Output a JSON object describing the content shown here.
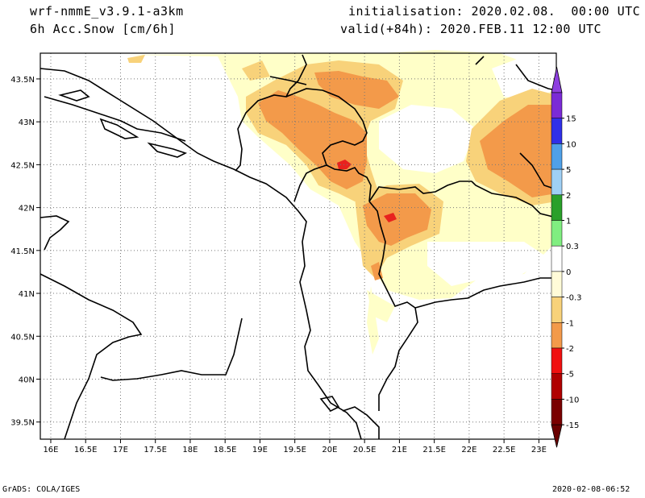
{
  "header": {
    "model": "wrf-nmmE_v3.9.1-a3km",
    "field": "6h Acc.Snow [cm/6h]",
    "init": "initialisation: 2020.02.08.  00:00 UTC",
    "valid": "valid(+84h): 2020.FEB.11 12:00 UTC"
  },
  "footer": {
    "left": "GrADS: COLA/IGES",
    "right": "2020-02-08-06:52"
  },
  "map": {
    "lat_labels": [
      "43.5N",
      "43N",
      "42.5N",
      "42N",
      "41.5N",
      "41N",
      "40.5N",
      "40N",
      "39.5N"
    ],
    "lat_values": [
      43.5,
      43,
      42.5,
      42,
      41.5,
      41,
      40.5,
      40,
      39.5
    ],
    "lon_labels": [
      "16E",
      "16.5E",
      "17E",
      "17.5E",
      "18E",
      "18.5E",
      "19E",
      "19.5E",
      "20E",
      "20.5E",
      "21E",
      "21.5E",
      "22E",
      "22.5E",
      "23E"
    ],
    "lon_values": [
      16,
      16.5,
      17,
      17.5,
      18,
      18.5,
      19,
      19.5,
      20,
      20.5,
      21,
      21.5,
      22,
      22.5,
      23
    ],
    "lon_range": [
      15.85,
      23.25
    ],
    "lat_range": [
      39.3,
      43.8
    ],
    "colors": {
      "very_light": "#ffffc8",
      "light": "#f8d27a",
      "orange": "#f39a4a",
      "red": "#e8221e"
    }
  },
  "colorbar": {
    "labels": [
      "15",
      "10",
      "5",
      "2",
      "1",
      "0.3",
      "0",
      "-0.3",
      "-1",
      "-2",
      "-5",
      "-10",
      "-15"
    ],
    "colors": [
      "#7b2bd6",
      "#3030e8",
      "#4fa0e8",
      "#9fd0f5",
      "#2aa02a",
      "#80ee80",
      "#ffffff",
      "#fffbd8",
      "#f8d27a",
      "#f39a4a",
      "#f01010",
      "#b00000",
      "#7a0000"
    ],
    "top_cap_color": "#8e3fe0",
    "bottom_cap_color": "#6a0000"
  }
}
